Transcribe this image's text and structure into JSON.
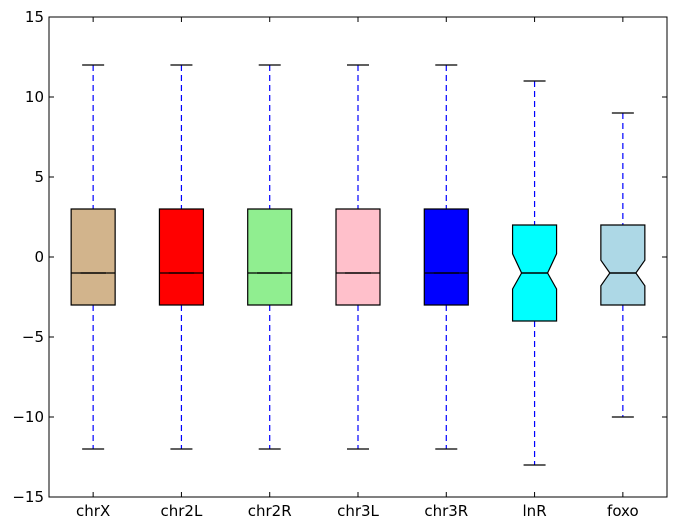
{
  "chart_data": {
    "type": "box",
    "categories": [
      "chrX",
      "chr2L",
      "chr2R",
      "chr3L",
      "chr3R",
      "lnR",
      "foxo"
    ],
    "boxes": [
      {
        "label": "chrX",
        "whisker_low": -12,
        "q1": -3,
        "median": -1,
        "q3": 3,
        "whisker_high": 12,
        "notch_low": -1,
        "notch_high": -1,
        "color": "#d2b48c"
      },
      {
        "label": "chr2L",
        "whisker_low": -12,
        "q1": -3,
        "median": -1,
        "q3": 3,
        "whisker_high": 12,
        "notch_low": -1,
        "notch_high": -1,
        "color": "#ff0000"
      },
      {
        "label": "chr2R",
        "whisker_low": -12,
        "q1": -3,
        "median": -1,
        "q3": 3,
        "whisker_high": 12,
        "notch_low": -1,
        "notch_high": -1,
        "color": "#90ee90"
      },
      {
        "label": "chr3L",
        "whisker_low": -12,
        "q1": -3,
        "median": -1,
        "q3": 3,
        "whisker_high": 12,
        "notch_low": -1,
        "notch_high": -1,
        "color": "#ffc0cb"
      },
      {
        "label": "chr3R",
        "whisker_low": -12,
        "q1": -3,
        "median": -1,
        "q3": 3,
        "whisker_high": 12,
        "notch_low": -1,
        "notch_high": -1,
        "color": "#0000ff"
      },
      {
        "label": "lnR",
        "whisker_low": -13,
        "q1": -4,
        "median": -1,
        "q3": 2,
        "whisker_high": 11,
        "notch_low": -2,
        "notch_high": 0.2,
        "color": "#00ffff"
      },
      {
        "label": "foxo",
        "whisker_low": -10,
        "q1": -3,
        "median": -1,
        "q3": 2,
        "whisker_high": 9,
        "notch_low": -1.8,
        "notch_high": -0.2,
        "color": "#add8e6"
      }
    ],
    "ylim": [
      -15,
      15
    ],
    "yticks": [
      -15,
      -10,
      -5,
      0,
      5,
      10,
      15
    ],
    "ytick_labels": [
      "−15",
      "−10",
      "−5",
      "0",
      "5",
      "10",
      "15"
    ],
    "title": "",
    "xlabel": "",
    "ylabel": "",
    "whisker_color": "#0000ff",
    "grid": false
  }
}
